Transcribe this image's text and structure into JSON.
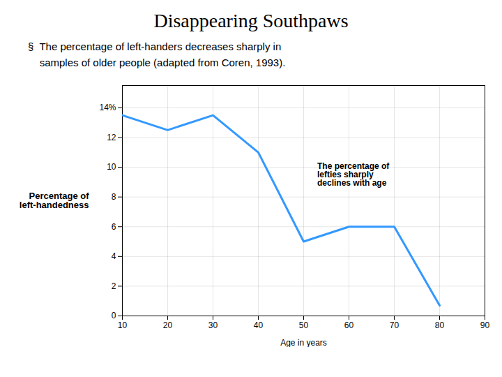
{
  "chart_data": {
    "type": "line",
    "title": "Disappearing Southpaws",
    "subtitle": "§  The percentage of left-handers decreases sharply in\n    samples of older people (adapted from Coren, 1993).",
    "x": [
      10,
      20,
      30,
      40,
      50,
      60,
      70,
      80
    ],
    "values": [
      13.5,
      12.5,
      13.5,
      11.0,
      5.0,
      6.0,
      6.0,
      0.7
    ],
    "color": "#3399FF",
    "xlabel": "Age in years",
    "ylabel": "Percentage of\nleft-handedness",
    "xlim": [
      10,
      90
    ],
    "xticks": [
      10,
      20,
      30,
      40,
      50,
      60,
      70,
      80,
      90
    ],
    "ylim": [
      0,
      15.5
    ],
    "yticks": [
      {
        "value": 14,
        "label": "14%"
      },
      12,
      10,
      8,
      6,
      4,
      2,
      0
    ],
    "grid": true,
    "annotations": [
      {
        "text": "The percentage of\nlefties sharply\ndeclines with age",
        "x": 53,
        "y": 9.5,
        "color": "#CCFFCC"
      }
    ]
  }
}
